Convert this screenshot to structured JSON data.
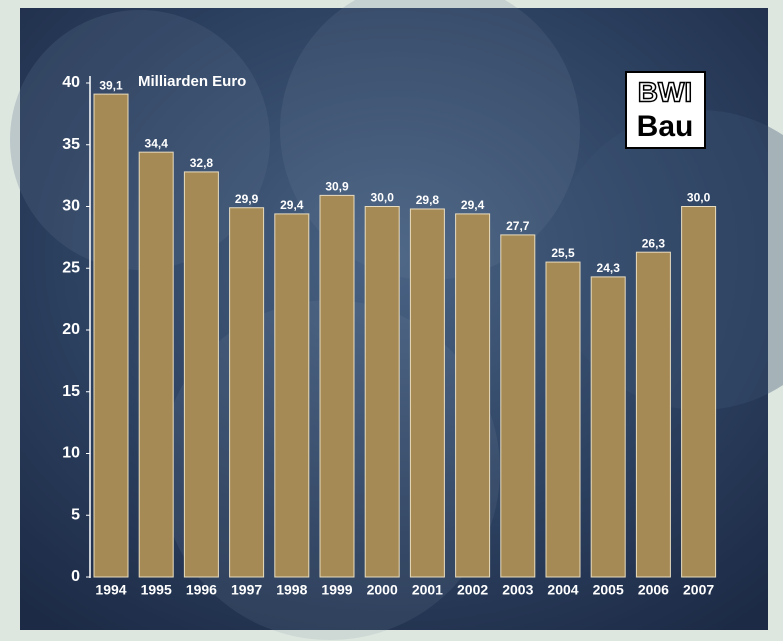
{
  "chart_data": {
    "type": "bar",
    "unit_label": "Milliarden Euro",
    "logo": [
      "BWI",
      "Bau"
    ],
    "categories": [
      "1994",
      "1995",
      "1996",
      "1997",
      "1998",
      "1999",
      "2000",
      "2001",
      "2002",
      "2003",
      "2004",
      "2005",
      "2006",
      "2007"
    ],
    "values": [
      39.1,
      34.4,
      32.8,
      29.9,
      29.4,
      30.9,
      30.0,
      29.8,
      29.4,
      27.7,
      25.5,
      24.3,
      26.3,
      30.0
    ],
    "value_labels": [
      "39,1",
      "34,4",
      "32,8",
      "29,9",
      "29,4",
      "30,9",
      "30,0",
      "29,8",
      "29,4",
      "27,7",
      "25,5",
      "24,3",
      "26,3",
      "30,0"
    ],
    "color": "#a68a55",
    "ylim": [
      0,
      40
    ],
    "yticks": [
      0,
      5,
      10,
      15,
      20,
      25,
      30,
      35,
      40
    ],
    "grid": false
  }
}
